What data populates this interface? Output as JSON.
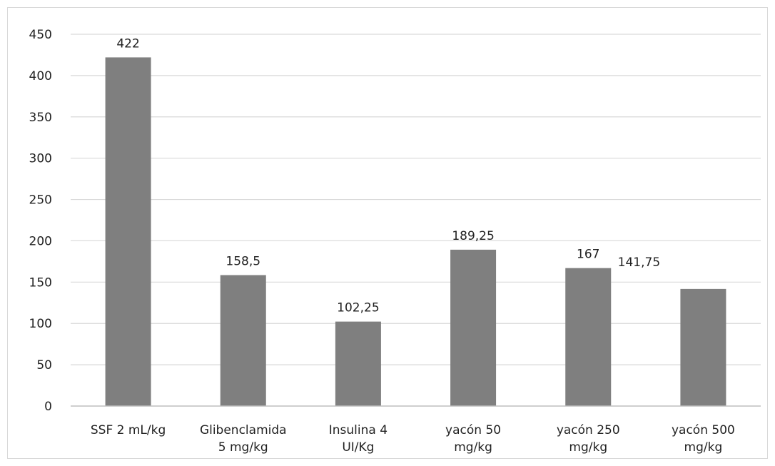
{
  "chart_data": {
    "type": "bar",
    "categories": [
      [
        "SSF 2 mL/kg"
      ],
      [
        "Glibenclamida",
        "5 mg/kg"
      ],
      [
        "Insulina 4",
        "UI/Kg"
      ],
      [
        "yacón 50",
        "mg/kg"
      ],
      [
        "yacón 250",
        "mg/kg"
      ],
      [
        "yacón 500",
        "mg/kg"
      ]
    ],
    "values": [
      422,
      158.5,
      102.25,
      189.25,
      167,
      141.75
    ],
    "data_labels": [
      "422",
      "158,5",
      "102,25",
      "189,25",
      "167",
      "141,75"
    ],
    "yticks": [
      "0",
      "50",
      "100",
      "150",
      "200",
      "250",
      "300",
      "350",
      "400",
      "450"
    ],
    "ylim": [
      0,
      450
    ],
    "grid": true,
    "legend": "none",
    "title": "",
    "xlabel": "",
    "ylabel": "",
    "colors": {
      "bar": "#7f7f7f",
      "grid": "#d9d9d9",
      "axis": "#bfbfbf",
      "text": "#222222"
    }
  }
}
